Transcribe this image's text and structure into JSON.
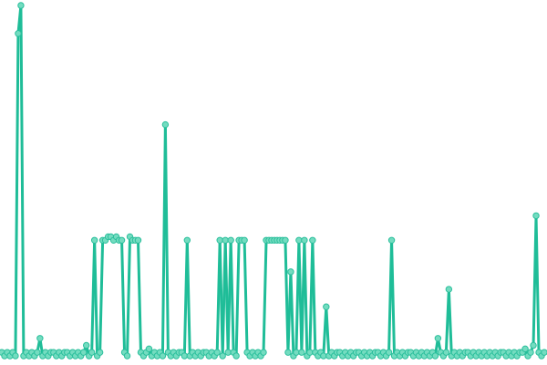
{
  "chart_data": {
    "type": "line",
    "title": "",
    "xlabel": "",
    "ylabel": "",
    "ylim": [
      0,
      100
    ],
    "grid": false,
    "legend": "none",
    "axes_visible": false,
    "markers": true,
    "colors": {
      "line": "#1fbd98",
      "marker_fill": "#74dcc0",
      "marker_stroke": "#2bbf9c"
    },
    "series": [
      {
        "values": [
          1,
          0,
          1,
          0,
          1,
          0,
          92,
          100,
          0,
          1,
          0,
          1,
          0,
          1,
          5,
          0,
          1,
          0,
          1,
          1,
          0,
          1,
          0,
          1,
          1,
          0,
          1,
          0,
          1,
          0,
          1,
          3,
          0,
          1,
          33,
          0,
          1,
          33,
          33,
          34,
          34,
          33,
          34,
          33,
          33,
          1,
          0,
          34,
          33,
          33,
          33,
          1,
          0,
          1,
          2,
          0,
          1,
          0,
          1,
          0,
          66,
          1,
          0,
          1,
          0,
          1,
          1,
          0,
          33,
          0,
          1,
          0,
          1,
          0,
          1,
          1,
          0,
          1,
          0,
          1,
          33,
          0,
          33,
          1,
          33,
          1,
          0,
          33,
          33,
          33,
          1,
          0,
          1,
          0,
          1,
          0,
          1,
          33,
          33,
          33,
          33,
          33,
          33,
          33,
          33,
          1,
          24,
          0,
          1,
          33,
          1,
          33,
          0,
          1,
          33,
          1,
          0,
          1,
          0,
          14,
          0,
          1,
          0,
          1,
          1,
          0,
          1,
          0,
          1,
          0,
          1,
          1,
          0,
          1,
          0,
          1,
          0,
          1,
          1,
          0,
          1,
          0,
          1,
          33,
          0,
          1,
          0,
          1,
          0,
          1,
          1,
          0,
          1,
          0,
          1,
          0,
          1,
          0,
          1,
          0,
          5,
          1,
          0,
          1,
          19,
          0,
          1,
          0,
          1,
          0,
          1,
          1,
          0,
          1,
          0,
          1,
          0,
          1,
          0,
          1,
          0,
          1,
          0,
          1,
          1,
          0,
          1,
          0,
          1,
          0,
          1,
          1,
          2,
          0,
          1,
          3,
          40,
          1,
          0,
          1
        ]
      }
    ]
  }
}
